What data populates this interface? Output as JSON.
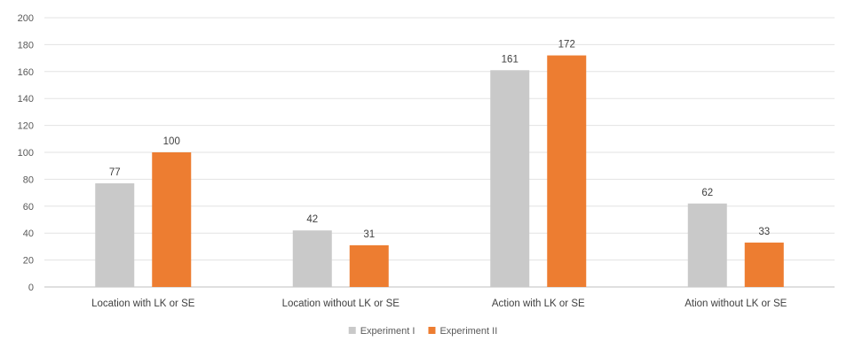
{
  "chart_data": {
    "type": "bar",
    "categories": [
      "Location with LK or SE",
      "Location without LK or SE",
      "Action with LK or SE",
      "Ation without LK or SE"
    ],
    "series": [
      {
        "name": "Experiment I",
        "values": [
          77,
          42,
          161,
          62
        ],
        "color": "#c9c9c9"
      },
      {
        "name": "Experiment II",
        "values": [
          100,
          31,
          172,
          33
        ],
        "color": "#ed7d31"
      }
    ],
    "ylim": [
      0,
      200
    ],
    "yticks": [
      0,
      20,
      40,
      60,
      80,
      100,
      120,
      140,
      160,
      180,
      200
    ],
    "grid": true,
    "legend_position": "bottom",
    "title": "",
    "xlabel": "",
    "ylabel": ""
  }
}
